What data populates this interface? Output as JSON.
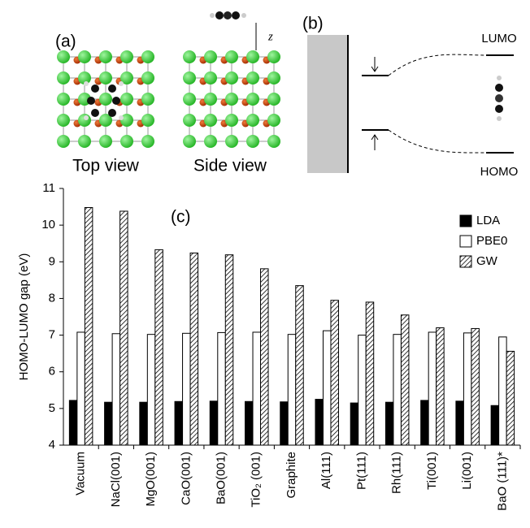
{
  "panel_a": {
    "label": "(a)",
    "captions": [
      "Top view",
      "Side view"
    ],
    "axis_label": "z"
  },
  "panel_b": {
    "label": "(b)",
    "upper_level": "LUMO",
    "lower_level": "HOMO"
  },
  "chart_data": {
    "type": "bar",
    "title": "(c)",
    "ylabel": "HOMO-LUMO gap (eV)",
    "categories": [
      "Vacuum",
      "NaCl(001)",
      "MgO(001)",
      "CaO(001)",
      "BaO(001)",
      "TiO₂ (001)",
      "Graphite",
      "Al(111)",
      "Pt(111)",
      "Rh(111)",
      "Ti(001)",
      "Li(001)",
      "BaO (111)*"
    ],
    "series": [
      {
        "name": "LDA",
        "color": "#000000",
        "values": [
          5.22,
          5.17,
          5.17,
          5.19,
          5.2,
          5.19,
          5.18,
          5.25,
          5.15,
          5.17,
          5.22,
          5.2,
          5.08
        ]
      },
      {
        "name": "PBE0",
        "color": "#ffffff",
        "values": [
          7.08,
          7.04,
          7.02,
          7.05,
          7.07,
          7.08,
          7.02,
          7.12,
          7.0,
          7.02,
          7.08,
          7.06,
          6.95
        ]
      },
      {
        "name": "GW",
        "color": "#ffffff",
        "pattern": "hatch",
        "values": [
          10.48,
          10.38,
          9.33,
          9.24,
          9.19,
          8.81,
          8.35,
          7.95,
          7.9,
          7.55,
          7.2,
          7.18,
          6.56
        ]
      }
    ],
    "ylim": [
      4,
      11
    ],
    "yticks": [
      4,
      5,
      6,
      7,
      8,
      9,
      10,
      11
    ],
    "legend": "top-right"
  }
}
